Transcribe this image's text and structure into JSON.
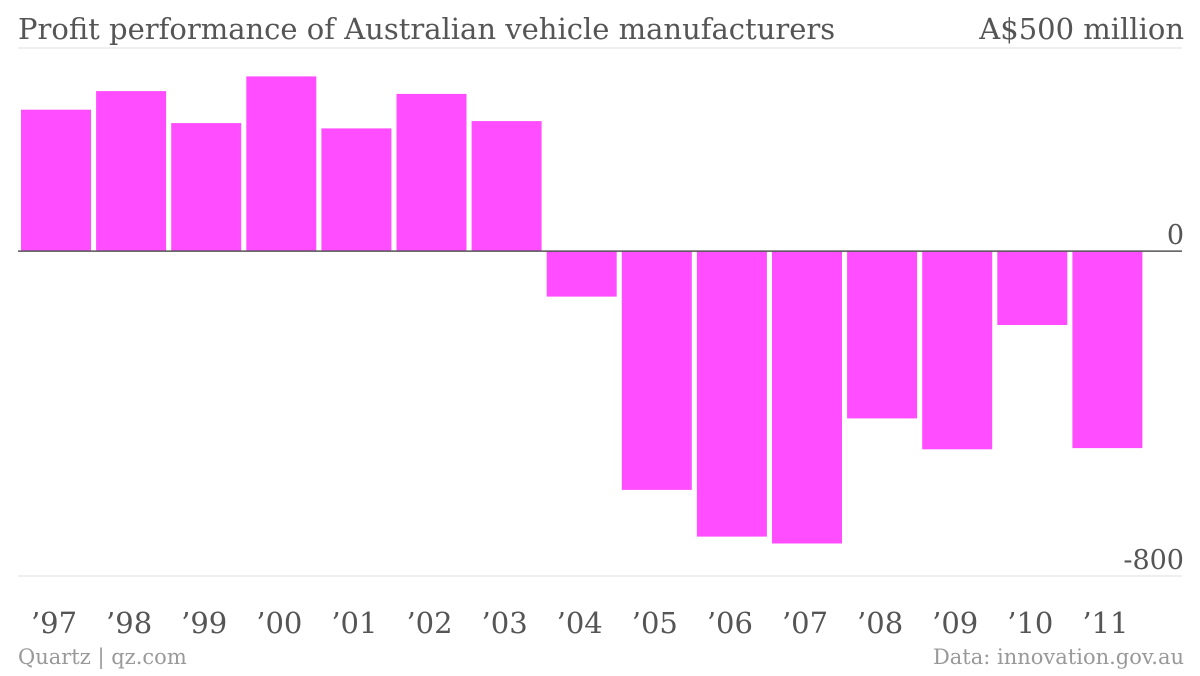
{
  "chart_data": {
    "type": "bar",
    "title": "Profit performance of Australian vehicle manufacturers",
    "unit_label": "A$500 million",
    "categories": [
      "’97",
      "’98",
      "’99",
      "’00",
      "’01",
      "’02",
      "’03",
      "’04",
      "’05",
      "’06",
      "’07",
      "’08",
      "’09",
      "’10",
      "’11"
    ],
    "values": [
      348,
      394,
      315,
      430,
      302,
      387,
      320,
      -112,
      -588,
      -703,
      -720,
      -412,
      -488,
      -182,
      -485
    ],
    "ylim": [
      -800,
      500
    ],
    "y_ticks": [
      {
        "value": 0,
        "label": "0"
      },
      {
        "value": -800,
        "label": "-800"
      }
    ],
    "bar_color": "#ff4dff",
    "grid": true
  },
  "source": {
    "left": "Quartz | qz.com",
    "right": "Data: innovation.gov.au"
  }
}
